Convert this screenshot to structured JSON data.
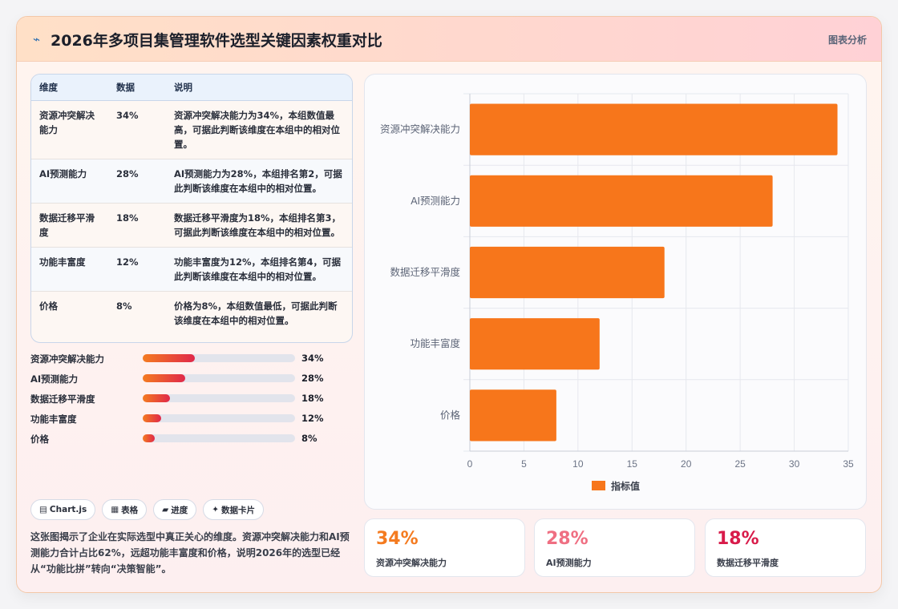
{
  "header": {
    "title": "2026年多项目集管理软件选型关键因素权重对比",
    "tag": "图表分析"
  },
  "table": {
    "headers": [
      "维度",
      "数据",
      "说明"
    ],
    "rows": [
      {
        "dim": "资源冲突解决能力",
        "val": "34%",
        "desc": "资源冲突解决能力为34%，本组数值最高，可据此判断该维度在本组中的相对位置。"
      },
      {
        "dim": "AI预测能力",
        "val": "28%",
        "desc": "AI预测能力为28%，本组排名第2，可据此判断该维度在本组中的相对位置。"
      },
      {
        "dim": "数据迁移平滑度",
        "val": "18%",
        "desc": "数据迁移平滑度为18%，本组排名第3，可据此判断该维度在本组中的相对位置。"
      },
      {
        "dim": "功能丰富度",
        "val": "12%",
        "desc": "功能丰富度为12%，本组排名第4，可据此判断该维度在本组中的相对位置。"
      },
      {
        "dim": "价格",
        "val": "8%",
        "desc": "价格为8%，本组数值最低，可据此判断该维度在本组中的相对位置。"
      }
    ]
  },
  "progress": [
    {
      "label": "资源冲突解决能力",
      "value": 34,
      "text": "34%"
    },
    {
      "label": "AI预测能力",
      "value": 28,
      "text": "28%"
    },
    {
      "label": "数据迁移平滑度",
      "value": 18,
      "text": "18%"
    },
    {
      "label": "功能丰富度",
      "value": 12,
      "text": "12%"
    },
    {
      "label": "价格",
      "value": 8,
      "text": "8%"
    }
  ],
  "chips": [
    {
      "icon": "▤",
      "label": "Chart.js"
    },
    {
      "icon": "▦",
      "label": "表格"
    },
    {
      "icon": "▰",
      "label": "进度"
    },
    {
      "icon": "✦",
      "label": "数据卡片"
    }
  ],
  "note": "这张图揭示了企业在实际选型中真正关心的维度。资源冲突解决能力和AI预测能力合计占比62%，远超功能丰富度和价格，说明2026年的选型已经从“功能比拼”转向“决策智能”。",
  "stats": [
    {
      "value": "34%",
      "caption": "资源冲突解决能力",
      "color": "#f47b20"
    },
    {
      "value": "28%",
      "caption": "AI预测能力",
      "color": "#ef6f82"
    },
    {
      "value": "18%",
      "caption": "数据迁移平滑度",
      "color": "#d81b4a"
    }
  ],
  "colors": {
    "bar": "#f7761b",
    "accent": "#f47b20"
  },
  "chart_data": {
    "type": "bar",
    "orientation": "horizontal",
    "categories": [
      "资源冲突解决能力",
      "AI预测能力",
      "数据迁移平滑度",
      "功能丰富度",
      "价格"
    ],
    "series": [
      {
        "name": "指标值",
        "values": [
          34,
          28,
          18,
          12,
          8
        ]
      }
    ],
    "xlim": [
      0,
      35
    ],
    "xticks": [
      0,
      5,
      10,
      15,
      20,
      25,
      30,
      35
    ],
    "grid": true,
    "legend": "bottom"
  }
}
